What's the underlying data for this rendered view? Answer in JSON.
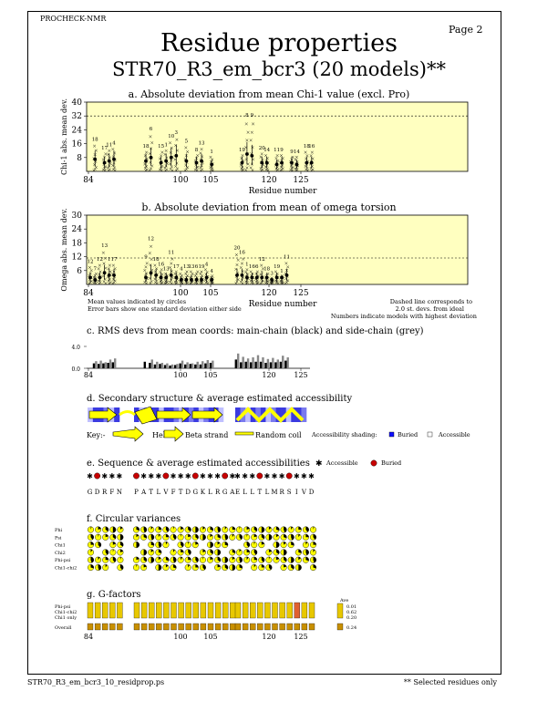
{
  "header": {
    "program": "PROCHECK-NMR",
    "page_label": "Page  2",
    "title": "Residue properties",
    "subtitle": "STR70_R3_em_bcr3 (20 models)**"
  },
  "footer": {
    "filename": "STR70_R3_em_bcr3_10_residprop.ps",
    "note": "** Selected residues only"
  },
  "notes": {
    "left": [
      "Mean values indicated by circles",
      "Error bars show one standard deviation either side"
    ],
    "right": [
      "Dashed line corresponds to",
      "2.0 st. devs. from ideal",
      "Numbers indicate models with highest deviation"
    ]
  },
  "key": {
    "label": "Key:-",
    "helix": "Helix",
    "strand": "Beta strand",
    "coil": "Random coil",
    "shading_label": "Accessibility shading:",
    "buried": "Buried",
    "accessible": "Accessible"
  },
  "seq_legend": {
    "accessible": "Accessible",
    "buried": "Buried"
  },
  "sequence": {
    "groups": [
      "GDRFN",
      "PATLVFTDGKLRGA",
      "ELLTLMRSIVD"
    ]
  },
  "colors": {
    "panel": "#ffffc0",
    "helix": "#ffff00",
    "structure_dark": "#3a3ae0",
    "structure_light": "#c0c0ff",
    "buried": "#c80000",
    "gfactor": "#e8c800",
    "gfactor_dark": "#c89000"
  },
  "icons": [
    "helix-arrow-icon",
    "strand-arrow-icon",
    "coil-line-icon",
    "asterisk-icon",
    "red-dot-icon",
    "pie-wedge-icon"
  ],
  "circ_rows": [
    "Phi",
    "Psi",
    "Chi1",
    "Chi2",
    "Phi-psi",
    "Chi1-chi2"
  ],
  "gf": {
    "rows": [
      "Phi-psi",
      "Chi1-chi2",
      "Chi1 only"
    ],
    "overall": "Overall",
    "ave_label": "Ave",
    "ave_values": [
      "0.01",
      "0.62",
      "0.20"
    ],
    "overall_value": "0.24"
  },
  "chart_data": [
    {
      "type": "scatter",
      "title": "a. Absolute deviation from mean Chi-1 value (excl. Pro)",
      "xlabel": "Residue number",
      "ylabel": "Chi-1 abs. mean dev.",
      "ylim": [
        0,
        40
      ],
      "yticks": [
        8,
        16,
        24,
        32,
        40
      ],
      "xticks": [
        84,
        100,
        105,
        120,
        125
      ],
      "dashed_threshold": 32,
      "grid": false,
      "residues": [
        {
          "res": 85,
          "mean": 7,
          "max": 16,
          "label": "18"
        },
        {
          "res": 87,
          "mean": 5,
          "max": 11,
          "label": "17"
        },
        {
          "res": 88,
          "mean": 6,
          "max": 13,
          "label": "11"
        },
        {
          "res": 89,
          "mean": 7,
          "max": 14,
          "label": "4"
        },
        {
          "res": 93,
          "mean": 6,
          "max": 12,
          "label": "18"
        },
        {
          "res": 94,
          "mean": 8,
          "max": 22,
          "label": "6"
        },
        {
          "res": 96,
          "mean": 5,
          "max": 12,
          "label": "15"
        },
        {
          "res": 97,
          "mean": 6,
          "max": 13,
          "label": "1"
        },
        {
          "res": 98,
          "mean": 8,
          "max": 18,
          "label": "10"
        },
        {
          "res": 99,
          "mean": 9,
          "max": 20,
          "label": "3"
        },
        {
          "res": 101,
          "mean": 6,
          "max": 15,
          "label": "5"
        },
        {
          "res": 103,
          "mean": 5,
          "max": 10,
          "label": "8"
        },
        {
          "res": 104,
          "mean": 6,
          "max": 14,
          "label": "13"
        },
        {
          "res": 106,
          "mean": 4,
          "max": 9,
          "label": "1"
        },
        {
          "res": 111,
          "mean": 5,
          "max": 10,
          "label": "19"
        },
        {
          "res": 112,
          "mean": 10,
          "max": 30,
          "label": "8"
        },
        {
          "res": 113,
          "mean": 9,
          "max": 30,
          "label": "9"
        },
        {
          "res": 115,
          "mean": 5,
          "max": 11,
          "label": "20"
        },
        {
          "res": 116,
          "mean": 5,
          "max": 10,
          "label": "14"
        },
        {
          "res": 118,
          "mean": 4,
          "max": 10,
          "label": "11"
        },
        {
          "res": 119,
          "mean": 5,
          "max": 10,
          "label": "9"
        },
        {
          "res": 121,
          "mean": 5,
          "max": 9,
          "label": "9"
        },
        {
          "res": 122,
          "mean": 4,
          "max": 9,
          "label": "14"
        },
        {
          "res": 124,
          "mean": 5,
          "max": 12,
          "label": "18"
        },
        {
          "res": 125,
          "mean": 5,
          "max": 12,
          "label": "16"
        }
      ]
    },
    {
      "type": "scatter",
      "title": "b. Absolute deviation from mean of omega torsion",
      "xlabel": "Residue number",
      "ylabel": "Omega abs. mean dev.",
      "ylim": [
        0,
        30
      ],
      "yticks": [
        6,
        12,
        18,
        24,
        30
      ],
      "xticks": [
        84,
        100,
        105,
        120,
        125
      ],
      "dashed_threshold": 11.5,
      "grid": false,
      "residues": [
        {
          "res": 84,
          "mean": 3,
          "max": 8,
          "label": "12"
        },
        {
          "res": 85,
          "mean": 2,
          "max": 5,
          "label": "7"
        },
        {
          "res": 86,
          "mean": 3,
          "max": 9,
          "label": "12"
        },
        {
          "res": 87,
          "mean": 5,
          "max": 15,
          "label": "13"
        },
        {
          "res": 88,
          "mean": 4,
          "max": 9,
          "label": "1"
        },
        {
          "res": 89,
          "mean": 4,
          "max": 9,
          "label": "17"
        },
        {
          "res": 93,
          "mean": 3,
          "max": 10,
          "label": "9"
        },
        {
          "res": 94,
          "mean": 5,
          "max": 18,
          "label": "12"
        },
        {
          "res": 95,
          "mean": 4,
          "max": 9,
          "label": "18"
        },
        {
          "res": 96,
          "mean": 3,
          "max": 7,
          "label": "16"
        },
        {
          "res": 97,
          "mean": 3,
          "max": 5,
          "label": "13"
        },
        {
          "res": 98,
          "mean": 4,
          "max": 12,
          "label": "11"
        },
        {
          "res": 99,
          "mean": 3,
          "max": 6,
          "label": "17"
        },
        {
          "res": 100,
          "mean": 2,
          "max": 5,
          "label": "4"
        },
        {
          "res": 101,
          "mean": 2,
          "max": 6,
          "label": "13"
        },
        {
          "res": 102,
          "mean": 2,
          "max": 6,
          "label": "13"
        },
        {
          "res": 103,
          "mean": 2,
          "max": 6,
          "label": "6"
        },
        {
          "res": 104,
          "mean": 2,
          "max": 6,
          "label": "19"
        },
        {
          "res": 105,
          "mean": 3,
          "max": 7,
          "label": "4"
        },
        {
          "res": 106,
          "mean": 2,
          "max": 4,
          "label": "4"
        },
        {
          "res": 110,
          "mean": 4,
          "max": 14,
          "label": "20"
        },
        {
          "res": 111,
          "mean": 4,
          "max": 12,
          "label": "16"
        },
        {
          "res": 112,
          "mean": 3,
          "max": 7,
          "label": "1"
        },
        {
          "res": 113,
          "mean": 3,
          "max": 6,
          "label": "16"
        },
        {
          "res": 114,
          "mean": 3,
          "max": 6,
          "label": "6"
        },
        {
          "res": 115,
          "mean": 3,
          "max": 9,
          "label": "12"
        },
        {
          "res": 116,
          "mean": 3,
          "max": 5,
          "label": "18"
        },
        {
          "res": 117,
          "mean": 2,
          "max": 3,
          "label": "3"
        },
        {
          "res": 118,
          "mean": 3,
          "max": 6,
          "label": "19"
        },
        {
          "res": 119,
          "mean": 3,
          "max": 4,
          "label": "1"
        },
        {
          "res": 120,
          "mean": 4,
          "max": 10,
          "label": "11"
        }
      ]
    },
    {
      "type": "bar",
      "title": "c. RMS devs from mean coords: main-chain (black) and side-chain (grey)",
      "ylim": [
        0,
        4
      ],
      "yticks": [
        0,
        4
      ],
      "xticks": [
        84,
        100,
        105,
        120,
        125
      ],
      "series": [
        {
          "name": "main-chain",
          "values": [
            0.9,
            0.8,
            0.9,
            1.0,
            1.1,
            1.2,
            1.0,
            0.7,
            0.8,
            0.6,
            0.5,
            0.6,
            0.9,
            0.7,
            0.8,
            0.7,
            0.7,
            0.9,
            1.0,
            1.6,
            1.1,
            1.2,
            1.1,
            1.2,
            1.2,
            1.0,
            1.1,
            1.1,
            1.2,
            1.4
          ]
        },
        {
          "name": "side-chain",
          "values": [
            1.3,
            1.4,
            1.1,
            1.6,
            1.8,
            0.0,
            1.6,
            1.2,
            1.0,
            0.9,
            0.7,
            0.8,
            1.4,
            1.1,
            0.9,
            1.2,
            1.3,
            1.5,
            1.4,
            2.7,
            2.1,
            1.8,
            2.0,
            2.4,
            2.0,
            1.7,
            1.9,
            1.6,
            2.3,
            2.0
          ]
        }
      ]
    }
  ]
}
